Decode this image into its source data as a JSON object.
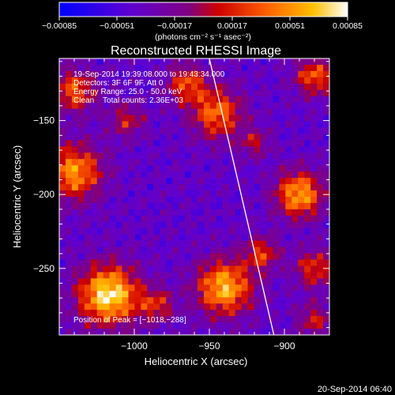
{
  "chart_data": {
    "type": "heatmap",
    "title": "Reconstructed RHESSI Image",
    "xlabel": "Heliocentric X (arcsec)",
    "ylabel": "Heliocentric Y (arcsec)",
    "xlim": [
      -1050,
      -870
    ],
    "ylim": [
      -295,
      -108
    ],
    "x_ticks": [
      -1000,
      -950,
      -900
    ],
    "x_tick_labels": [
      "−1000",
      "−950",
      "−900"
    ],
    "y_ticks": [
      -150,
      -200,
      -250
    ],
    "y_tick_labels": [
      "−150",
      "−200",
      "−250"
    ],
    "colorbar": {
      "min": -0.00085,
      "max": 0.00085,
      "ticks": [
        -0.00085,
        -0.00051,
        -0.00017,
        0.00017,
        0.00051,
        0.00085
      ],
      "tick_labels": [
        "−0.00085",
        "−0.00051",
        "−0.00017",
        "0.00017",
        "0.00051",
        "0.00085"
      ],
      "unit_label": "(photons cm⁻² s⁻¹ asec⁻²)",
      "colors": [
        "#0000ff",
        "#6000d0",
        "#800080",
        "#cc0000",
        "#ff6000",
        "#ffc000",
        "#ffffff"
      ]
    },
    "annotations": [
      "19-Sep-2014 19:39:08.000 to 19:43:34.000",
      "Detectors: 3F 6F 9F, Att 0",
      "Energy Range: 25.0 - 50.0 keV",
      "Clean    Total counts: 2.36E+03"
    ],
    "peak_label": "Position of Peak = [−1018,−288]",
    "peak": {
      "x": -1018,
      "y": -288
    },
    "limb_line": {
      "x": [
        -950,
        -907
      ],
      "y": [
        -108,
        -295
      ]
    },
    "sources": [
      {
        "x": -1017,
        "y": -268,
        "sigma": 14,
        "amp": 1.0
      },
      {
        "x": -940,
        "y": -263,
        "sigma": 13,
        "amp": 0.85
      },
      {
        "x": -1040,
        "y": -185,
        "sigma": 13,
        "amp": 0.75
      },
      {
        "x": -890,
        "y": -200,
        "sigma": 11,
        "amp": 0.8
      },
      {
        "x": -945,
        "y": -145,
        "sigma": 12,
        "amp": 0.65
      },
      {
        "x": -1040,
        "y": -130,
        "sigma": 10,
        "amp": 0.6
      },
      {
        "x": -965,
        "y": -125,
        "sigma": 9,
        "amp": 0.55
      },
      {
        "x": -880,
        "y": -120,
        "sigma": 9,
        "amp": 0.6
      },
      {
        "x": -880,
        "y": -250,
        "sigma": 9,
        "amp": 0.5
      },
      {
        "x": -915,
        "y": -240,
        "sigma": 8,
        "amp": 0.5
      },
      {
        "x": -985,
        "y": -275,
        "sigma": 8,
        "amp": 0.45
      },
      {
        "x": -1005,
        "y": -150,
        "sigma": 8,
        "amp": 0.4
      },
      {
        "x": -880,
        "y": -285,
        "sigma": 8,
        "amp": 0.4
      },
      {
        "x": -920,
        "y": -165,
        "sigma": 7,
        "amp": 0.35
      }
    ],
    "timestamp": "20-Sep-2014 06:40"
  }
}
